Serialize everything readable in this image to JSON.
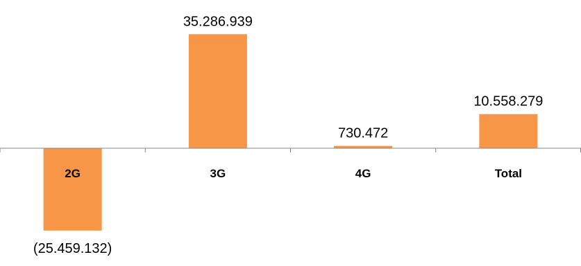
{
  "chart_data": {
    "type": "bar",
    "categories": [
      "2G",
      "3G",
      "4G",
      "Total"
    ],
    "values": [
      -25459132,
      35286939,
      730472,
      10558279
    ],
    "data_labels": [
      "(25.459.132)",
      "35.286.939",
      "730.472",
      "10.558.279"
    ],
    "bar_color": "#F79646",
    "axis_color": "#868686",
    "ylim": [
      -27000000,
      36000000
    ],
    "grid": false,
    "legend": "none",
    "title": "",
    "xlabel": "",
    "ylabel": ""
  }
}
